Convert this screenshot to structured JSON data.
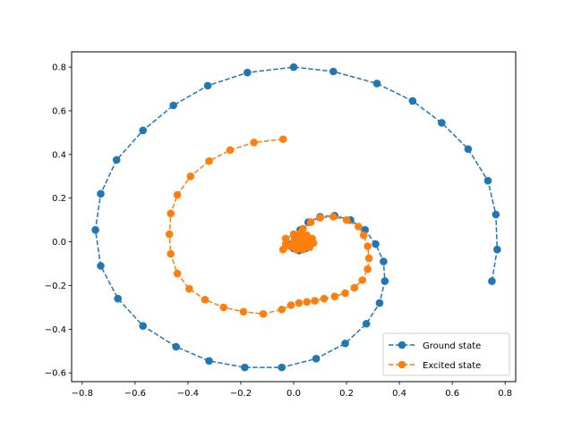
{
  "chart_data": {
    "type": "line",
    "title": "",
    "xlabel": "",
    "ylabel": "",
    "xlim": [
      -0.84,
      0.84
    ],
    "ylim": [
      -0.64,
      0.87
    ],
    "xticks": [
      -0.8,
      -0.6,
      -0.4,
      -0.2,
      0.0,
      0.2,
      0.4,
      0.6,
      0.8
    ],
    "yticks": [
      -0.6,
      -0.4,
      -0.2,
      0.0,
      0.2,
      0.4,
      0.6,
      0.8
    ],
    "xtick_labels": [
      "−0.8",
      "−0.6",
      "−0.4",
      "−0.2",
      "0.0",
      "0.2",
      "0.4",
      "0.6",
      "0.8"
    ],
    "ytick_labels": [
      "−0.6",
      "−0.4",
      "−0.2",
      "0.0",
      "0.2",
      "0.4",
      "0.6",
      "0.8"
    ],
    "grid": false,
    "legend_position": "lower-right",
    "series": [
      {
        "name": "Ground state",
        "color": "#1f77b4",
        "linestyle": "dashed",
        "marker": "circle",
        "points": [
          [
            0.75,
            -0.18
          ],
          [
            0.77,
            -0.035
          ],
          [
            0.765,
            0.125
          ],
          [
            0.735,
            0.28
          ],
          [
            0.66,
            0.425
          ],
          [
            0.56,
            0.545
          ],
          [
            0.45,
            0.645
          ],
          [
            0.315,
            0.725
          ],
          [
            0.15,
            0.78
          ],
          [
            0.0,
            0.8
          ],
          [
            -0.175,
            0.775
          ],
          [
            -0.325,
            0.715
          ],
          [
            -0.455,
            0.625
          ],
          [
            -0.57,
            0.51
          ],
          [
            -0.67,
            0.375
          ],
          [
            -0.73,
            0.22
          ],
          [
            -0.75,
            0.055
          ],
          [
            -0.73,
            -0.11
          ],
          [
            -0.665,
            -0.26
          ],
          [
            -0.57,
            -0.385
          ],
          [
            -0.445,
            -0.48
          ],
          [
            -0.32,
            -0.545
          ],
          [
            -0.185,
            -0.575
          ],
          [
            -0.045,
            -0.575
          ],
          [
            0.085,
            -0.535
          ],
          [
            0.195,
            -0.465
          ],
          [
            0.275,
            -0.375
          ],
          [
            0.325,
            -0.28
          ],
          [
            0.345,
            -0.18
          ],
          [
            0.34,
            -0.09
          ],
          [
            0.31,
            -0.01
          ],
          [
            0.27,
            0.055
          ],
          [
            0.215,
            0.1
          ],
          [
            0.155,
            0.12
          ],
          [
            0.1,
            0.115
          ],
          [
            0.055,
            0.09
          ],
          [
            0.025,
            0.055
          ],
          [
            0.005,
            0.02
          ],
          [
            -0.01,
            -0.01
          ],
          [
            0.0,
            -0.03
          ],
          [
            0.02,
            -0.04
          ],
          [
            0.045,
            -0.03
          ],
          [
            0.06,
            -0.01
          ],
          [
            0.06,
            0.01
          ],
          [
            0.04,
            0.025
          ],
          [
            0.02,
            0.02
          ],
          [
            0.01,
            0.0
          ],
          [
            0.015,
            -0.015
          ],
          [
            0.03,
            -0.02
          ],
          [
            0.04,
            -0.005
          ]
        ]
      },
      {
        "name": "Excited state",
        "color": "#ff7f0e",
        "linestyle": "dashed",
        "marker": "circle",
        "points": [
          [
            -0.04,
            0.47
          ],
          [
            -0.15,
            0.455
          ],
          [
            -0.24,
            0.42
          ],
          [
            -0.32,
            0.37
          ],
          [
            -0.39,
            0.3
          ],
          [
            -0.44,
            0.215
          ],
          [
            -0.465,
            0.13
          ],
          [
            -0.47,
            0.035
          ],
          [
            -0.465,
            -0.055
          ],
          [
            -0.44,
            -0.145
          ],
          [
            -0.395,
            -0.215
          ],
          [
            -0.335,
            -0.265
          ],
          [
            -0.265,
            -0.3
          ],
          [
            -0.19,
            -0.32
          ],
          [
            -0.115,
            -0.33
          ],
          [
            -0.045,
            -0.31
          ],
          [
            -0.01,
            -0.29
          ],
          [
            0.02,
            -0.28
          ],
          [
            0.05,
            -0.275
          ],
          [
            0.08,
            -0.27
          ],
          [
            0.115,
            -0.26
          ],
          [
            0.155,
            -0.25
          ],
          [
            0.195,
            -0.235
          ],
          [
            0.23,
            -0.21
          ],
          [
            0.26,
            -0.175
          ],
          [
            0.28,
            -0.125
          ],
          [
            0.285,
            -0.075
          ],
          [
            0.28,
            -0.02
          ],
          [
            0.265,
            0.03
          ],
          [
            0.245,
            0.07
          ],
          [
            0.2,
            0.1
          ],
          [
            0.15,
            0.115
          ],
          [
            0.1,
            0.11
          ],
          [
            0.065,
            0.09
          ],
          [
            0.035,
            0.06
          ],
          [
            0.015,
            0.025
          ],
          [
            0.0,
            0.0
          ],
          [
            -0.015,
            -0.02
          ],
          [
            -0.04,
            -0.035
          ],
          [
            -0.03,
            -0.01
          ],
          [
            -0.03,
            0.015
          ],
          [
            0.0,
            0.035
          ],
          [
            0.025,
            0.04
          ],
          [
            0.05,
            0.03
          ],
          [
            0.07,
            0.015
          ],
          [
            0.075,
            -0.005
          ],
          [
            0.06,
            -0.025
          ],
          [
            0.035,
            -0.035
          ],
          [
            0.01,
            -0.035
          ],
          [
            -0.005,
            -0.02
          ],
          [
            0.0,
            0.0
          ],
          [
            0.015,
            0.015
          ],
          [
            0.035,
            0.02
          ],
          [
            0.05,
            0.01
          ],
          [
            0.05,
            -0.01
          ],
          [
            0.035,
            -0.02
          ],
          [
            0.02,
            -0.015
          ],
          [
            0.015,
            0.0
          ],
          [
            0.02,
            0.01
          ],
          [
            0.03,
            0.005
          ]
        ]
      }
    ]
  }
}
